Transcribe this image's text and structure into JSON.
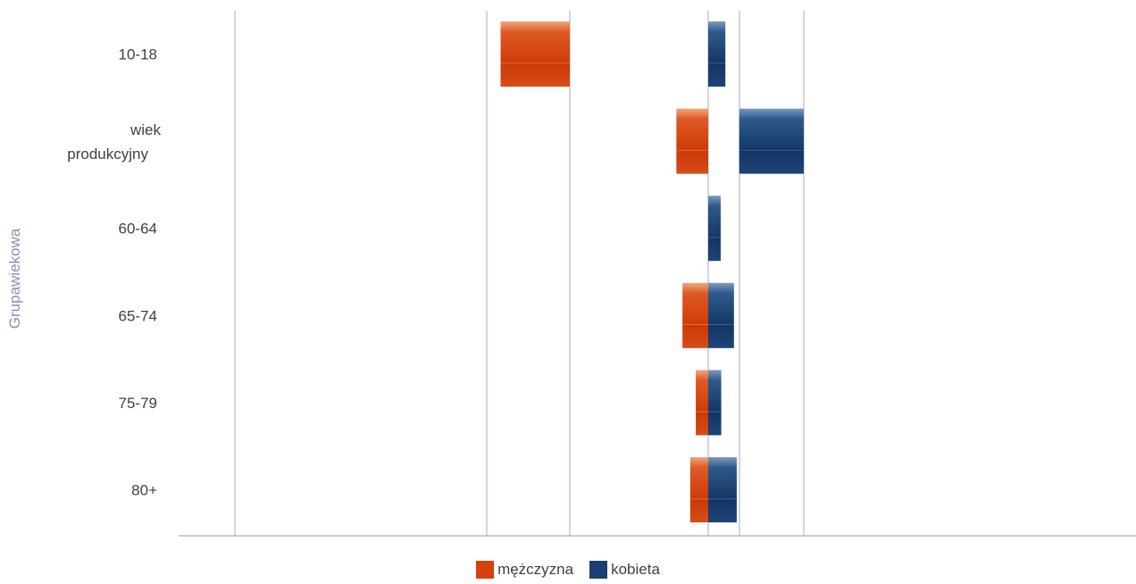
{
  "chart_data": {
    "type": "bar",
    "orientation": "horizontal",
    "stacked": "diverging",
    "title": "",
    "ylabel": "Grupawiekowa",
    "xlabel": "",
    "categories": [
      "10-18",
      "wiek produkcyjny",
      "60-64",
      "65-74",
      "75-79",
      "80+"
    ],
    "series": [
      {
        "name": "mężczyzna",
        "color": "#d5420c",
        "segments": [
          [
            -7.5,
            -5.0
          ],
          [
            -1.15,
            0.0
          ],
          null,
          [
            0.0,
            -0.93
          ],
          [
            0.0,
            -0.45
          ],
          [
            0.0,
            -0.65
          ]
        ]
      },
      {
        "name": "kobieta",
        "color": "#1a3f72",
        "segments": [
          [
            0.0,
            0.62
          ],
          [
            1.12,
            3.45
          ],
          [
            0.0,
            0.45
          ],
          [
            0.0,
            0.93
          ],
          [
            0.0,
            0.47
          ],
          [
            0.0,
            1.03
          ]
        ]
      }
    ],
    "gridlines_x": [
      -8.0,
      -5.0,
      0.0,
      1.12,
      3.45
    ],
    "xlim": [
      -8.5,
      3.9
    ],
    "grid": true,
    "legend_position": "bottom"
  }
}
